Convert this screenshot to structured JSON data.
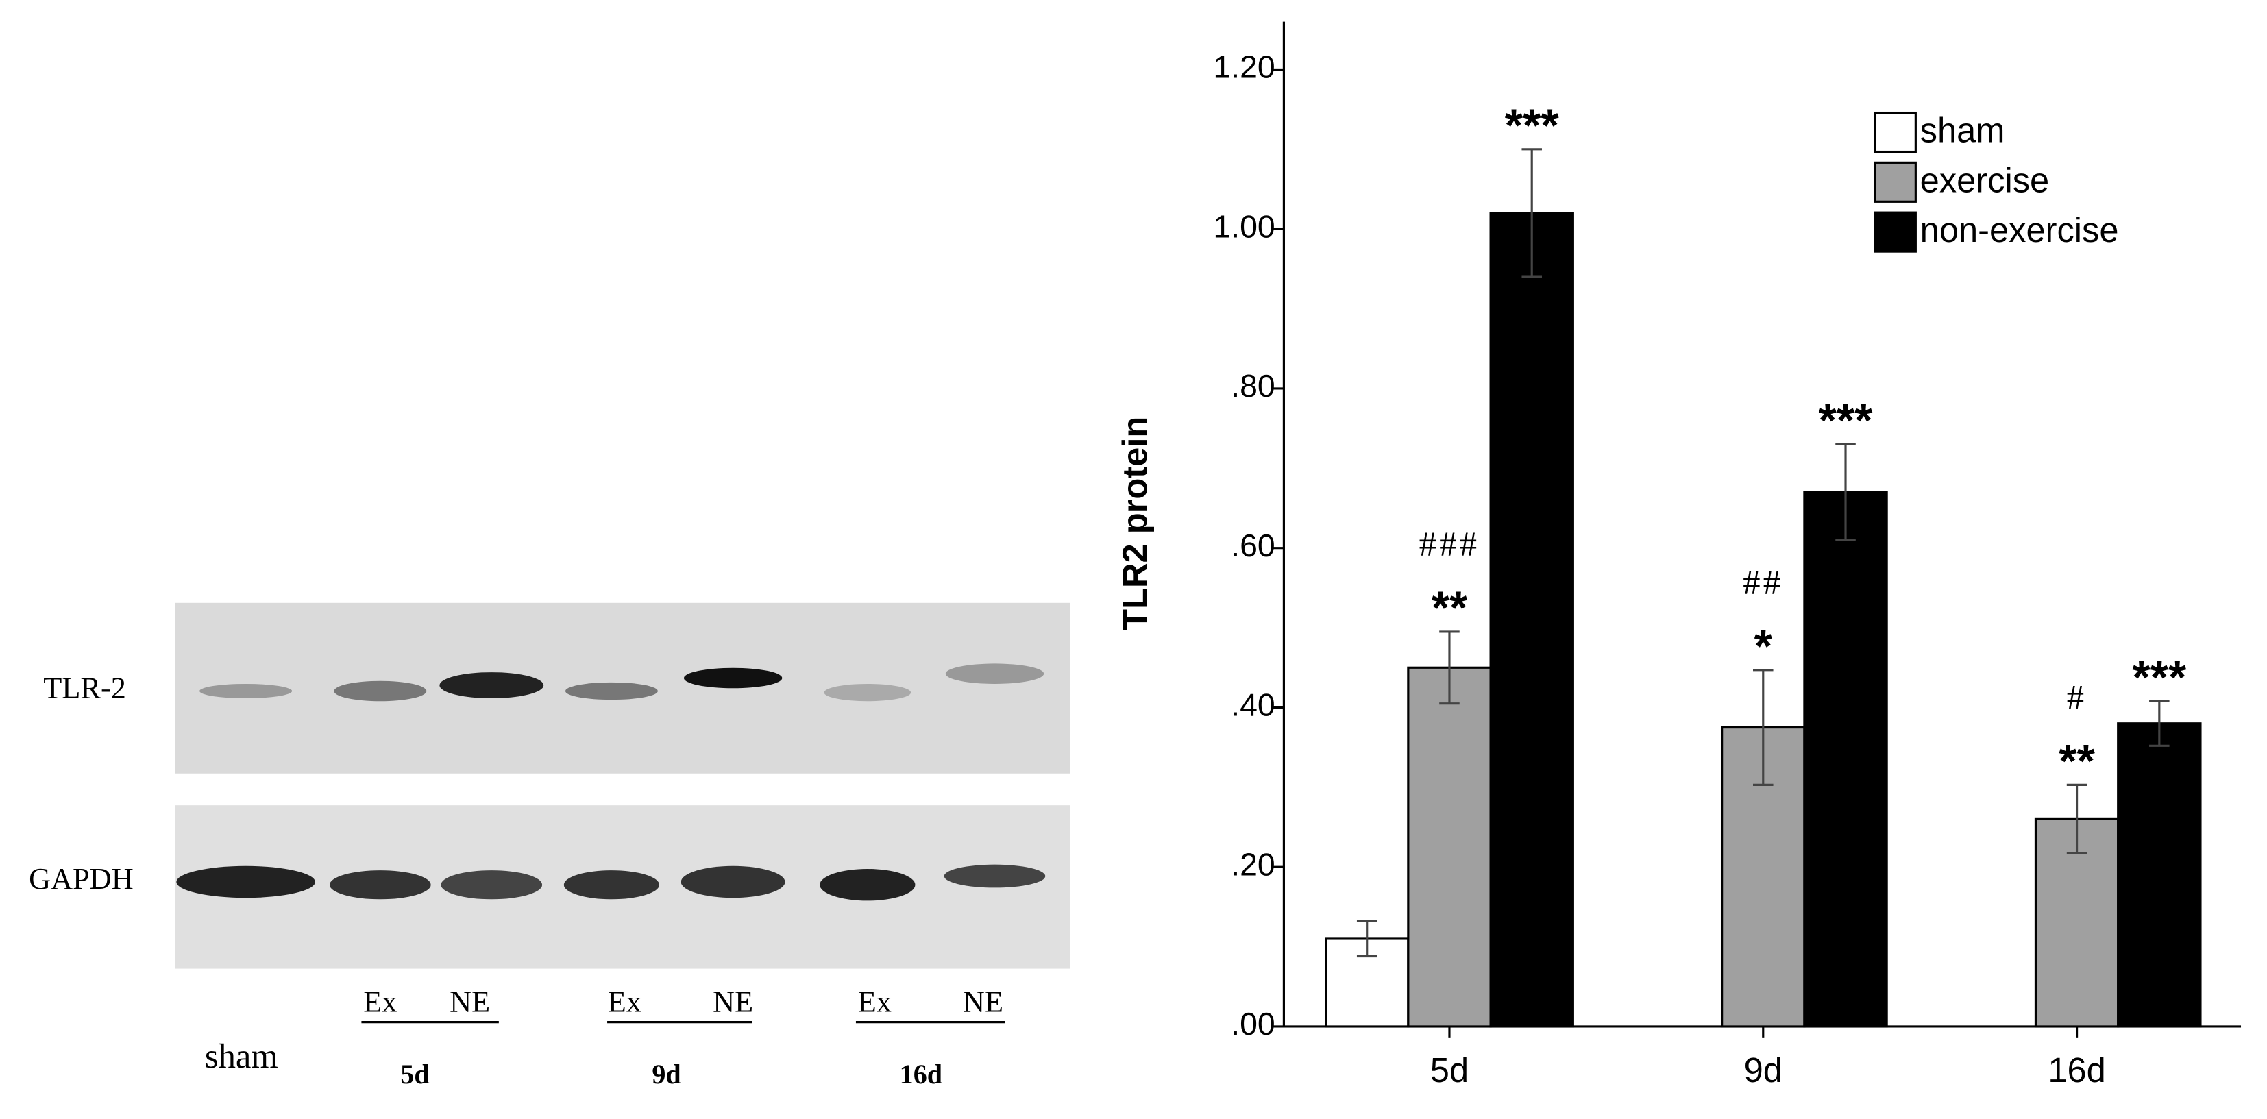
{
  "blot": {
    "rows": [
      "TLR-2",
      "GAPDH"
    ],
    "lanes": [
      "Ex",
      "NE",
      "Ex",
      "NE",
      "Ex",
      "NE"
    ],
    "groups": [
      "sham",
      "5d",
      "9d",
      "16d"
    ]
  },
  "chart_data": {
    "type": "bar",
    "y_label": "TLR2 protein",
    "categories": [
      "5d",
      "9d",
      "16d"
    ],
    "series": [
      {
        "name": "sham",
        "color": "#ffffff",
        "values": [
          0.11,
          null,
          null
        ],
        "errors": [
          0.022,
          null,
          null
        ]
      },
      {
        "name": "exercise",
        "color": "#a0a0a0",
        "values": [
          0.45,
          0.375,
          0.26
        ],
        "errors": [
          0.045,
          0.072,
          0.043
        ],
        "stars": [
          "**",
          "*",
          "**"
        ],
        "hashes": [
          "###",
          "##",
          "#"
        ]
      },
      {
        "name": "non-exercise",
        "color": "#000000",
        "values": [
          1.02,
          0.67,
          0.38
        ],
        "errors": [
          0.08,
          0.06,
          0.028
        ],
        "stars": [
          "***",
          "***",
          "***"
        ]
      }
    ],
    "ylim": [
      0,
      1.26
    ],
    "yticks": [
      {
        "value": 0,
        "label": ".00"
      },
      {
        "value": 0.2,
        "label": ".20"
      },
      {
        "value": 0.4,
        "label": ".40"
      },
      {
        "value": 0.6,
        "label": ".60"
      },
      {
        "value": 0.8,
        "label": ".80"
      },
      {
        "value": 1.0,
        "label": "1.00"
      },
      {
        "value": 1.2,
        "label": "1.20"
      }
    ],
    "legend": "top-right"
  }
}
